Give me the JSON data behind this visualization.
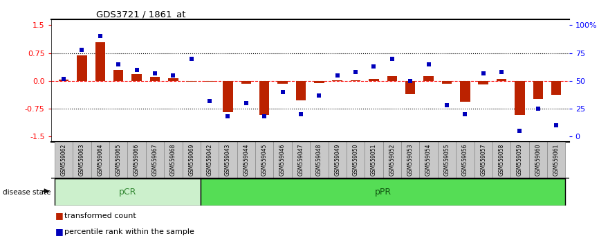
{
  "title": "GDS3721 / 1861_at",
  "samples": [
    "GSM559062",
    "GSM559063",
    "GSM559064",
    "GSM559065",
    "GSM559066",
    "GSM559067",
    "GSM559068",
    "GSM559069",
    "GSM559042",
    "GSM559043",
    "GSM559044",
    "GSM559045",
    "GSM559046",
    "GSM559047",
    "GSM559048",
    "GSM559049",
    "GSM559050",
    "GSM559051",
    "GSM559052",
    "GSM559053",
    "GSM559054",
    "GSM559055",
    "GSM559056",
    "GSM559057",
    "GSM559058",
    "GSM559059",
    "GSM559060",
    "GSM559061"
  ],
  "transformed_count": [
    0.03,
    0.68,
    1.05,
    0.3,
    0.18,
    0.1,
    0.08,
    -0.03,
    -0.03,
    -0.85,
    -0.07,
    -0.92,
    -0.07,
    -0.52,
    -0.05,
    0.02,
    0.02,
    0.05,
    0.13,
    -0.35,
    0.12,
    -0.08,
    -0.56,
    -0.1,
    0.05,
    -0.92,
    -0.48,
    -0.38
  ],
  "percentile_rank": [
    52,
    78,
    90,
    65,
    60,
    57,
    55,
    70,
    32,
    18,
    30,
    18,
    40,
    20,
    37,
    55,
    58,
    63,
    70,
    50,
    65,
    28,
    20,
    57,
    58,
    5,
    25,
    10
  ],
  "pcr_count": 8,
  "ppr_count": 20,
  "ylim": [
    -1.65,
    1.65
  ],
  "yticks_left": [
    -1.5,
    -0.75,
    0.0,
    0.75,
    1.5
  ],
  "yticks_right": [
    0,
    25,
    50,
    75,
    100
  ],
  "bar_color": "#BB2200",
  "dot_color": "#0000BB",
  "pcr_color": "#ccf0cc",
  "ppr_color": "#55dd55",
  "group_text_color_pcr": "#338833",
  "group_text_color_ppr": "#115511",
  "tick_bg_color": "#C8C8C8",
  "tick_border_color": "#888888"
}
